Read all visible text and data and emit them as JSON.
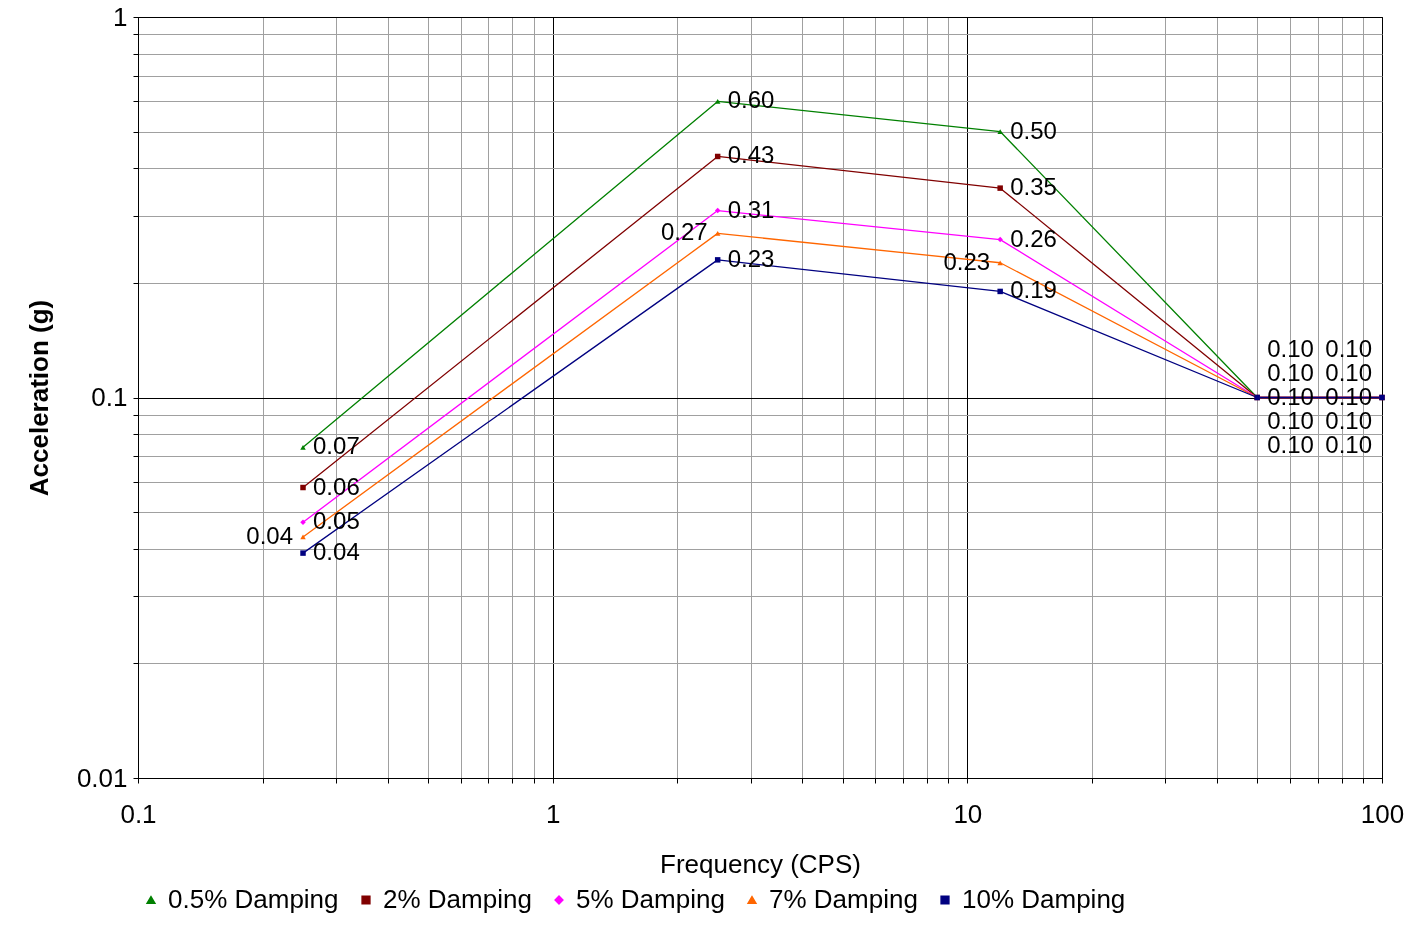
{
  "chart_data": {
    "type": "line",
    "xlabel": "Frequency (CPS)",
    "ylabel": "Acceleration (g)",
    "log": "xy",
    "grid": true,
    "legend": "bottom",
    "xlim": [
      0.1,
      100
    ],
    "ylim": [
      0.01,
      1
    ],
    "xticks": [
      0.1,
      {
        "value": 0.2,
        "label": null
      },
      {
        "value": 0.3,
        "label": null
      },
      {
        "value": 0.4,
        "label": null
      },
      {
        "value": 0.5,
        "label": null
      },
      {
        "value": 0.6,
        "label": null
      },
      {
        "value": 0.7,
        "label": null
      },
      {
        "value": 0.8,
        "label": null
      },
      {
        "value": 0.9,
        "label": null
      },
      1,
      {
        "value": 2,
        "label": null
      },
      {
        "value": 3,
        "label": null
      },
      {
        "value": 4,
        "label": null
      },
      {
        "value": 5,
        "label": null
      },
      {
        "value": 6,
        "label": null
      },
      {
        "value": 7,
        "label": null
      },
      {
        "value": 8,
        "label": null
      },
      {
        "value": 9,
        "label": null
      },
      10,
      {
        "value": 20,
        "label": null
      },
      {
        "value": 30,
        "label": null
      },
      {
        "value": 40,
        "label": null
      },
      {
        "value": 50,
        "label": null
      },
      {
        "value": 60,
        "label": null
      },
      {
        "value": 70,
        "label": null
      },
      {
        "value": 80,
        "label": null
      },
      {
        "value": 90,
        "label": null
      },
      100
    ],
    "yticks": [
      0.01,
      {
        "value": 0.02,
        "label": null
      },
      {
        "value": 0.03,
        "label": null
      },
      {
        "value": 0.04,
        "label": null
      },
      {
        "value": 0.05,
        "label": null
      },
      {
        "value": 0.06,
        "label": null
      },
      {
        "value": 0.07,
        "label": null
      },
      {
        "value": 0.08,
        "label": null
      },
      {
        "value": 0.09,
        "label": null
      },
      0.1,
      {
        "value": 0.2,
        "label": null
      },
      {
        "value": 0.3,
        "label": null
      },
      {
        "value": 0.4,
        "label": null
      },
      {
        "value": 0.5,
        "label": null
      },
      {
        "value": 0.6,
        "label": null
      },
      {
        "value": 0.7,
        "label": null
      },
      {
        "value": 0.8,
        "label": null
      },
      {
        "value": 0.9,
        "label": null
      },
      1
    ],
    "x": [
      0.25,
      2.5,
      12,
      50,
      100
    ],
    "series": [
      {
        "name": "0.5% Damping",
        "color": "#008000",
        "marker": "triangle",
        "values": [
          0.074,
          0.6,
          0.5,
          0.1,
          0.1
        ],
        "value_labels": [
          "0.07",
          "0.60",
          "0.50",
          "0.10",
          "0.10"
        ]
      },
      {
        "name": "2% Damping",
        "color": "#800000",
        "marker": "square",
        "values": [
          0.058,
          0.43,
          0.355,
          0.1,
          0.1
        ],
        "value_labels": [
          "0.06",
          "0.43",
          "0.35",
          "0.10",
          "0.10"
        ]
      },
      {
        "name": "5% Damping",
        "color": "#ff00ff",
        "marker": "diamond",
        "values": [
          0.047,
          0.31,
          0.26,
          0.1,
          0.1
        ],
        "value_labels": [
          "0.05",
          "0.31",
          "0.26",
          "0.10",
          "0.10"
        ]
      },
      {
        "name": "7% Damping",
        "color": "#ff6600",
        "marker": "triangle",
        "values": [
          0.043,
          0.27,
          0.226,
          0.1,
          0.1
        ],
        "value_labels": [
          "0.04",
          "0.27",
          "0.23",
          "0.10",
          "0.10"
        ]
      },
      {
        "name": "10% Damping",
        "color": "#000080",
        "marker": "square",
        "values": [
          0.039,
          0.23,
          0.19,
          0.1,
          0.1
        ],
        "value_labels": [
          "0.04",
          "0.23",
          "0.19",
          "0.10",
          "0.10"
        ]
      }
    ]
  }
}
